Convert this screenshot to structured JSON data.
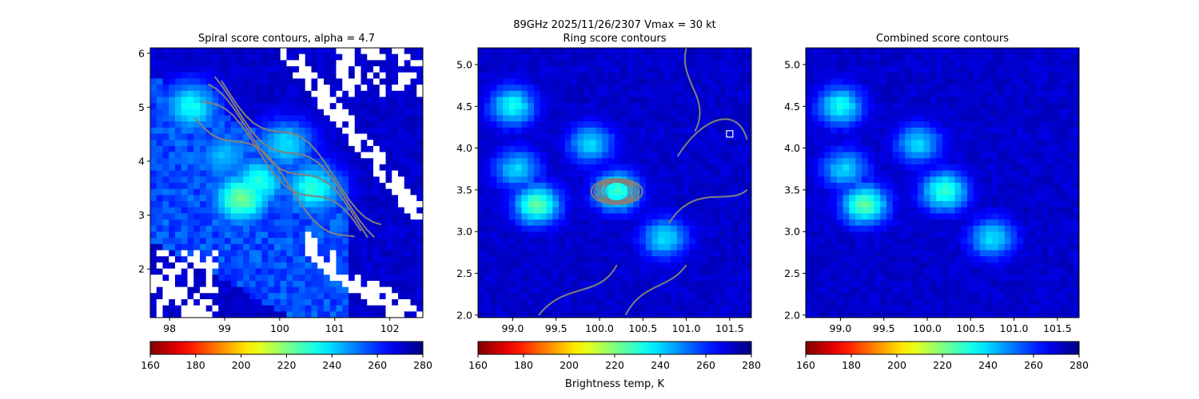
{
  "figure": {
    "suptitle_line1": "89GHz  2025/11/26/2307    Vmax = 30 kt",
    "colorbar_label": "Brightness temp, K",
    "colormap_reversed": "jet",
    "contour_color": "#808080",
    "missing_color": "#ffffff"
  },
  "chart_data": [
    {
      "type": "heatmap",
      "title": "Spiral score contours, alpha =  4.7",
      "xlim": [
        97.65,
        102.6
      ],
      "ylim": [
        1.1,
        6.1
      ],
      "xticks": [
        "98",
        "99",
        "100",
        "101",
        "102"
      ],
      "xtick_values": [
        98,
        99,
        100,
        101,
        102
      ],
      "yticks": [
        "2",
        "3",
        "4",
        "5",
        "6"
      ],
      "ytick_values": [
        2,
        3,
        4,
        5,
        6
      ],
      "grid": false,
      "overlay": "spiral score contours",
      "colorbar": {
        "range": [
          160,
          280
        ],
        "ticks": [
          "160",
          "180",
          "200",
          "220",
          "240",
          "260",
          "280"
        ],
        "tick_values": [
          160,
          180,
          200,
          220,
          240,
          260,
          280
        ]
      },
      "cold_spots": [
        {
          "x": 99.3,
          "y": 3.3,
          "tb": 220
        },
        {
          "x": 99.6,
          "y": 3.6,
          "tb": 228
        },
        {
          "x": 100.6,
          "y": 3.5,
          "tb": 228
        },
        {
          "x": 98.4,
          "y": 5.0,
          "tb": 232
        },
        {
          "x": 100.1,
          "y": 4.3,
          "tb": 236
        },
        {
          "x": 99.0,
          "y": 4.1,
          "tb": 240
        }
      ]
    },
    {
      "type": "heatmap",
      "title": "Ring score contours",
      "xlim": [
        98.6,
        101.75
      ],
      "ylim": [
        1.97,
        5.2
      ],
      "xticks": [
        "99.0",
        "99.5",
        "100.0",
        "100.5",
        "101.0",
        "101.5"
      ],
      "xtick_values": [
        99.0,
        99.5,
        100.0,
        100.5,
        101.0,
        101.5
      ],
      "yticks": [
        "2.0",
        "2.5",
        "3.0",
        "3.5",
        "4.0",
        "4.5",
        "5.0"
      ],
      "ytick_values": [
        2.0,
        2.5,
        3.0,
        3.5,
        4.0,
        4.5,
        5.0
      ],
      "grid": false,
      "overlay": "ring score contours",
      "marker": {
        "x": 101.5,
        "y": 4.17,
        "shape": "open-square"
      },
      "colorbar": {
        "range": [
          160,
          280
        ],
        "ticks": [
          "160",
          "180",
          "200",
          "220",
          "240",
          "260",
          "280"
        ],
        "tick_values": [
          160,
          180,
          200,
          220,
          240,
          260,
          280
        ]
      },
      "cold_spots": [
        {
          "x": 99.28,
          "y": 3.32,
          "tb": 222
        },
        {
          "x": 100.2,
          "y": 3.48,
          "tb": 226
        },
        {
          "x": 99.0,
          "y": 4.5,
          "tb": 232
        },
        {
          "x": 99.9,
          "y": 4.05,
          "tb": 238
        },
        {
          "x": 99.05,
          "y": 3.75,
          "tb": 238
        },
        {
          "x": 100.75,
          "y": 2.92,
          "tb": 236
        }
      ]
    },
    {
      "type": "heatmap",
      "title": "Combined score contours",
      "xlim": [
        98.6,
        101.75
      ],
      "ylim": [
        1.97,
        5.2
      ],
      "xticks": [
        "99.0",
        "99.5",
        "100.0",
        "100.5",
        "101.0",
        "101.5"
      ],
      "xtick_values": [
        99.0,
        99.5,
        100.0,
        100.5,
        101.0,
        101.5
      ],
      "yticks": [
        "2.0",
        "2.5",
        "3.0",
        "3.5",
        "4.0",
        "4.5",
        "5.0"
      ],
      "ytick_values": [
        2.0,
        2.5,
        3.0,
        3.5,
        4.0,
        4.5,
        5.0
      ],
      "grid": false,
      "colorbar": {
        "range": [
          160,
          280
        ],
        "ticks": [
          "160",
          "180",
          "200",
          "220",
          "240",
          "260",
          "280"
        ],
        "tick_values": [
          160,
          180,
          200,
          220,
          240,
          260,
          280
        ]
      },
      "cold_spots": [
        {
          "x": 99.28,
          "y": 3.32,
          "tb": 222
        },
        {
          "x": 100.2,
          "y": 3.48,
          "tb": 226
        },
        {
          "x": 99.0,
          "y": 4.5,
          "tb": 232
        },
        {
          "x": 99.9,
          "y": 4.05,
          "tb": 238
        },
        {
          "x": 99.05,
          "y": 3.75,
          "tb": 238
        },
        {
          "x": 100.75,
          "y": 2.92,
          "tb": 236
        }
      ]
    }
  ]
}
